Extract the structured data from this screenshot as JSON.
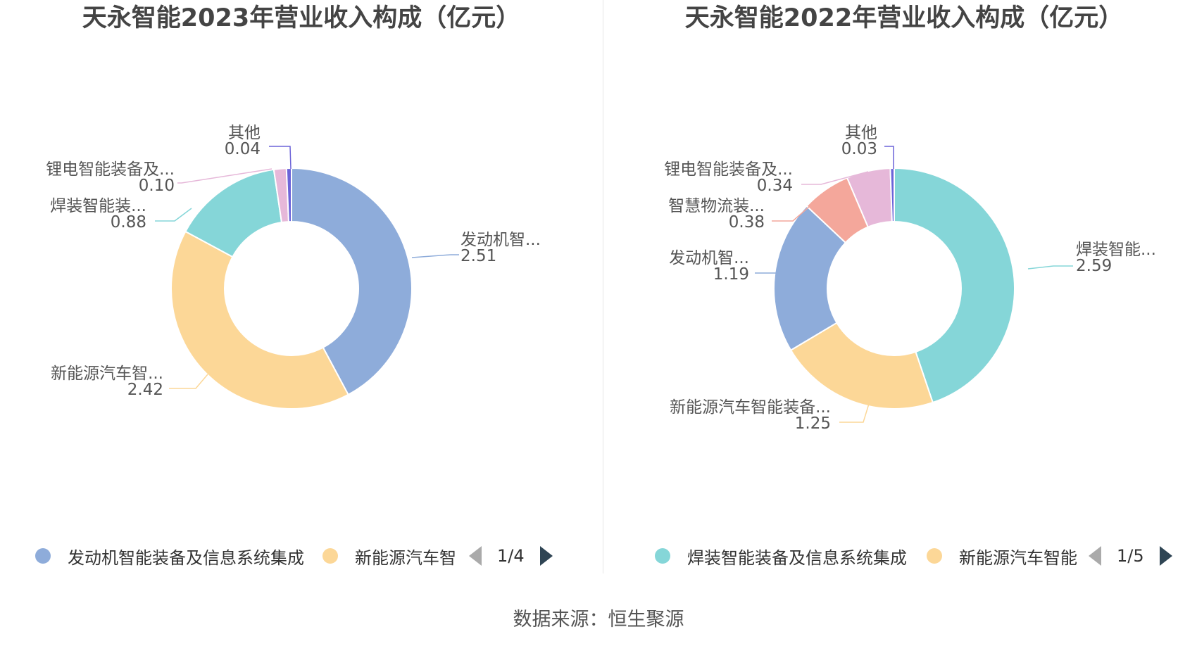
{
  "source_label": "数据来源：恒生聚源",
  "chart_data": [
    {
      "type": "pie",
      "style": "donut",
      "title": "天永智能2023年营业收入构成（亿元）",
      "slices": [
        {
          "label": "发动机智...",
          "full_name": "发动机智能装备及信息系统集成",
          "value": 2.51,
          "value_label": "2.51",
          "color": "#8eacda"
        },
        {
          "label": "新能源汽车智...",
          "full_name": "新能源汽车智",
          "value": 2.42,
          "value_label": "2.42",
          "color": "#fcd797"
        },
        {
          "label": "焊装智能装...",
          "value": 0.88,
          "value_label": "0.88",
          "color": "#85d6d8"
        },
        {
          "label": "锂电智能装备及...",
          "value": 0.1,
          "value_label": "0.10",
          "color": "#e6b8d9"
        },
        {
          "label": "其他",
          "value": 0.04,
          "value_label": "0.04",
          "color": "#6c63d8"
        }
      ],
      "legend": {
        "items": [
          {
            "label": "发动机智能装备及信息系统集成",
            "color": "#8eacda"
          },
          {
            "label": "新能源汽车智",
            "color": "#fcd797"
          }
        ],
        "page": "1/4"
      }
    },
    {
      "type": "pie",
      "style": "donut",
      "title": "天永智能2022年营业收入构成（亿元）",
      "slices": [
        {
          "label": "焊装智能...",
          "full_name": "焊装智能装备及信息系统集成",
          "value": 2.59,
          "value_label": "2.59",
          "color": "#85d6d8"
        },
        {
          "label": "新能源汽车智能装备...",
          "full_name": "新能源汽车智能",
          "value": 1.25,
          "value_label": "1.25",
          "color": "#fcd797"
        },
        {
          "label": "发动机智...",
          "value": 1.19,
          "value_label": "1.19",
          "color": "#8eacda"
        },
        {
          "label": "智慧物流装...",
          "value": 0.38,
          "value_label": "0.38",
          "color": "#f4a79b"
        },
        {
          "label": "锂电智能装备及...",
          "value": 0.34,
          "value_label": "0.34",
          "color": "#e6b8d9"
        },
        {
          "label": "其他",
          "value": 0.03,
          "value_label": "0.03",
          "color": "#6c63d8"
        }
      ],
      "legend": {
        "items": [
          {
            "label": "焊装智能装备及信息系统集成",
            "color": "#85d6d8"
          },
          {
            "label": "新能源汽车智能",
            "color": "#fcd797"
          }
        ],
        "page": "1/5"
      }
    }
  ]
}
